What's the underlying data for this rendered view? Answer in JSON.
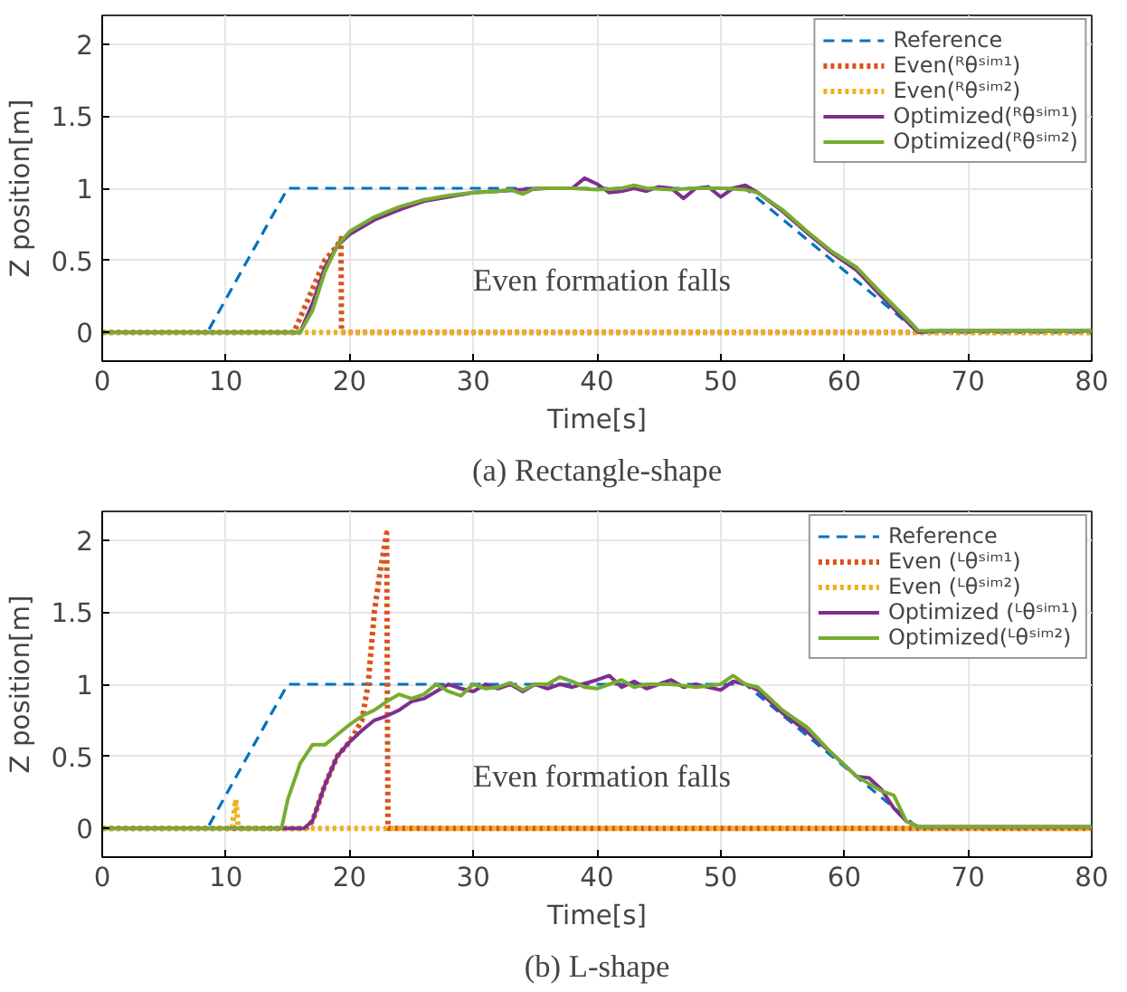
{
  "chart_data": [
    {
      "type": "line",
      "title": "(a) Rectangle-shape",
      "xlabel": "Time[s]",
      "ylabel": "Z position[m]",
      "xlim": [
        0,
        80
      ],
      "xticks": [
        0,
        10,
        20,
        30,
        40,
        50,
        60,
        70,
        80
      ],
      "ylim": [
        -0.2,
        2.2
      ],
      "yticks": [
        0,
        0.5,
        1,
        1.5,
        2
      ],
      "grid": true,
      "legend": "top right",
      "annotations": [
        "Even formation falls"
      ],
      "series": [
        {
          "name": "Reference",
          "color": "#0072bd",
          "line_style": "dashed",
          "x": [
            0,
            8.5,
            15,
            52,
            66,
            80
          ],
          "values": [
            0,
            0,
            1,
            1,
            0,
            0
          ]
        },
        {
          "name": "Even(ᴿθˢⁱᵐ¹)",
          "color": "#d95319",
          "line_style": "dotted",
          "x": [
            0,
            15.5,
            16,
            17,
            18,
            19,
            19.3,
            19.35,
            80
          ],
          "values": [
            0,
            0,
            0.1,
            0.3,
            0.5,
            0.6,
            0.65,
            0,
            0
          ]
        },
        {
          "name": "Even(ᴿθˢⁱᵐ²)",
          "color": "#edb120",
          "line_style": "dotted",
          "x": [
            0,
            80
          ],
          "values": [
            0,
            0
          ]
        },
        {
          "name": "Optimized(ᴿθˢⁱᵐ¹)",
          "color": "#7e2f8e",
          "line_style": "solid",
          "x": [
            0,
            16,
            17,
            18,
            19,
            20,
            22,
            24,
            26,
            28,
            30,
            32,
            34,
            36,
            38,
            39,
            40,
            41,
            42,
            43,
            44,
            45,
            46,
            47,
            48,
            49,
            50,
            51,
            52,
            53,
            55,
            57,
            59,
            61,
            63,
            65,
            66,
            67,
            80
          ],
          "values": [
            0,
            0,
            0.2,
            0.45,
            0.6,
            0.68,
            0.78,
            0.85,
            0.91,
            0.94,
            0.97,
            0.98,
            0.99,
            1.0,
            1.0,
            1.07,
            1.03,
            0.97,
            0.98,
            1.0,
            0.98,
            1.01,
            1.0,
            0.93,
            1.0,
            1.01,
            0.94,
            1.0,
            1.02,
            0.97,
            0.84,
            0.69,
            0.55,
            0.43,
            0.25,
            0.08,
            0,
            0.01,
            0.01
          ]
        },
        {
          "name": "Optimized(ᴿθˢⁱᵐ²)",
          "color": "#77ac30",
          "line_style": "solid",
          "x": [
            0,
            16,
            17,
            18,
            19,
            20,
            22,
            24,
            26,
            28,
            30,
            32,
            33,
            34,
            35,
            38,
            40,
            42,
            43,
            44,
            46,
            48,
            50,
            52,
            53,
            55,
            57,
            59,
            61,
            63,
            65,
            66,
            80
          ],
          "values": [
            0,
            0,
            0.15,
            0.42,
            0.6,
            0.7,
            0.8,
            0.87,
            0.92,
            0.95,
            0.97,
            0.98,
            0.99,
            0.96,
            1.0,
            1.0,
            0.99,
            1.0,
            1.02,
            1.0,
            0.99,
            1.0,
            1.0,
            0.99,
            0.97,
            0.85,
            0.7,
            0.56,
            0.45,
            0.27,
            0.1,
            0.01,
            0.01
          ]
        }
      ]
    },
    {
      "type": "line",
      "title": "(b) L-shape",
      "xlabel": "Time[s]",
      "ylabel": "Z position[m]",
      "xlim": [
        0,
        80
      ],
      "xticks": [
        0,
        10,
        20,
        30,
        40,
        50,
        60,
        70,
        80
      ],
      "ylim": [
        -0.2,
        2.2
      ],
      "yticks": [
        0,
        0.5,
        1,
        1.5,
        2
      ],
      "grid": true,
      "legend": "top right",
      "annotations": [
        "Even formation falls"
      ],
      "series": [
        {
          "name": "Reference",
          "color": "#0072bd",
          "line_style": "dashed",
          "x": [
            0,
            8.5,
            15,
            52,
            66,
            80
          ],
          "values": [
            0,
            0,
            1,
            1,
            0,
            0
          ]
        },
        {
          "name": "Even (ᴸθˢⁱᵐ¹)",
          "color": "#d95319",
          "line_style": "dotted",
          "x": [
            0,
            16.5,
            17,
            18,
            19,
            20,
            21,
            21.5,
            22,
            22.5,
            23,
            23.1,
            80
          ],
          "values": [
            0,
            0,
            0.05,
            0.3,
            0.5,
            0.6,
            0.75,
            1.0,
            1.5,
            1.8,
            2.05,
            0,
            0
          ]
        },
        {
          "name": "Even (ᴸθˢⁱᵐ²)",
          "color": "#edb120",
          "line_style": "dotted",
          "x": [
            0,
            10.5,
            10.8,
            11,
            80
          ],
          "values": [
            0,
            0,
            0.2,
            0,
            0
          ]
        },
        {
          "name": "Optimized (ᴸθˢⁱᵐ¹)",
          "color": "#7e2f8e",
          "line_style": "solid",
          "x": [
            0,
            16.3,
            17,
            18,
            19,
            20,
            21,
            22,
            23,
            24,
            25,
            26,
            28,
            29,
            30,
            31,
            32,
            33,
            34,
            35,
            36,
            37,
            38,
            40,
            41,
            42,
            43,
            44,
            45,
            46,
            47,
            48,
            50,
            51,
            52,
            53,
            55,
            57,
            59,
            61,
            62,
            63,
            64,
            65,
            66,
            80
          ],
          "values": [
            0,
            0,
            0.05,
            0.3,
            0.5,
            0.6,
            0.68,
            0.75,
            0.78,
            0.82,
            0.88,
            0.9,
            1.0,
            0.97,
            0.95,
            1.0,
            0.97,
            1.0,
            0.95,
            1.0,
            0.97,
            1.0,
            0.98,
            1.03,
            1.06,
            0.98,
            1.02,
            0.97,
            1.0,
            1.03,
            0.98,
            1.0,
            0.96,
            1.02,
            1.0,
            0.96,
            0.8,
            0.67,
            0.52,
            0.36,
            0.35,
            0.27,
            0.14,
            0.05,
            0.01,
            0.01
          ]
        },
        {
          "name": "Optimized(ᴸθˢⁱᵐ²)",
          "color": "#77ac30",
          "line_style": "solid",
          "x": [
            0,
            14.5,
            15,
            16,
            17,
            18,
            19,
            20,
            21,
            22,
            23,
            24,
            25,
            26,
            27,
            28,
            29,
            30,
            31,
            32,
            33,
            34,
            35,
            36,
            37,
            38,
            39,
            40,
            41,
            42,
            43,
            44,
            46,
            48,
            50,
            51,
            52,
            53,
            55,
            57,
            59,
            61,
            63,
            64,
            65,
            66,
            80
          ],
          "values": [
            0,
            0,
            0.2,
            0.45,
            0.58,
            0.58,
            0.65,
            0.72,
            0.78,
            0.82,
            0.88,
            0.93,
            0.9,
            0.93,
            1.0,
            0.95,
            0.92,
            1.0,
            0.97,
            0.98,
            1.01,
            0.96,
            1.0,
            1.0,
            1.05,
            1.02,
            0.98,
            0.97,
            1.0,
            1.03,
            0.98,
            1.0,
            1.0,
            0.98,
            1.0,
            1.06,
            1.0,
            0.98,
            0.82,
            0.7,
            0.52,
            0.36,
            0.26,
            0.23,
            0.05,
            0.01,
            0.01
          ]
        }
      ]
    }
  ]
}
